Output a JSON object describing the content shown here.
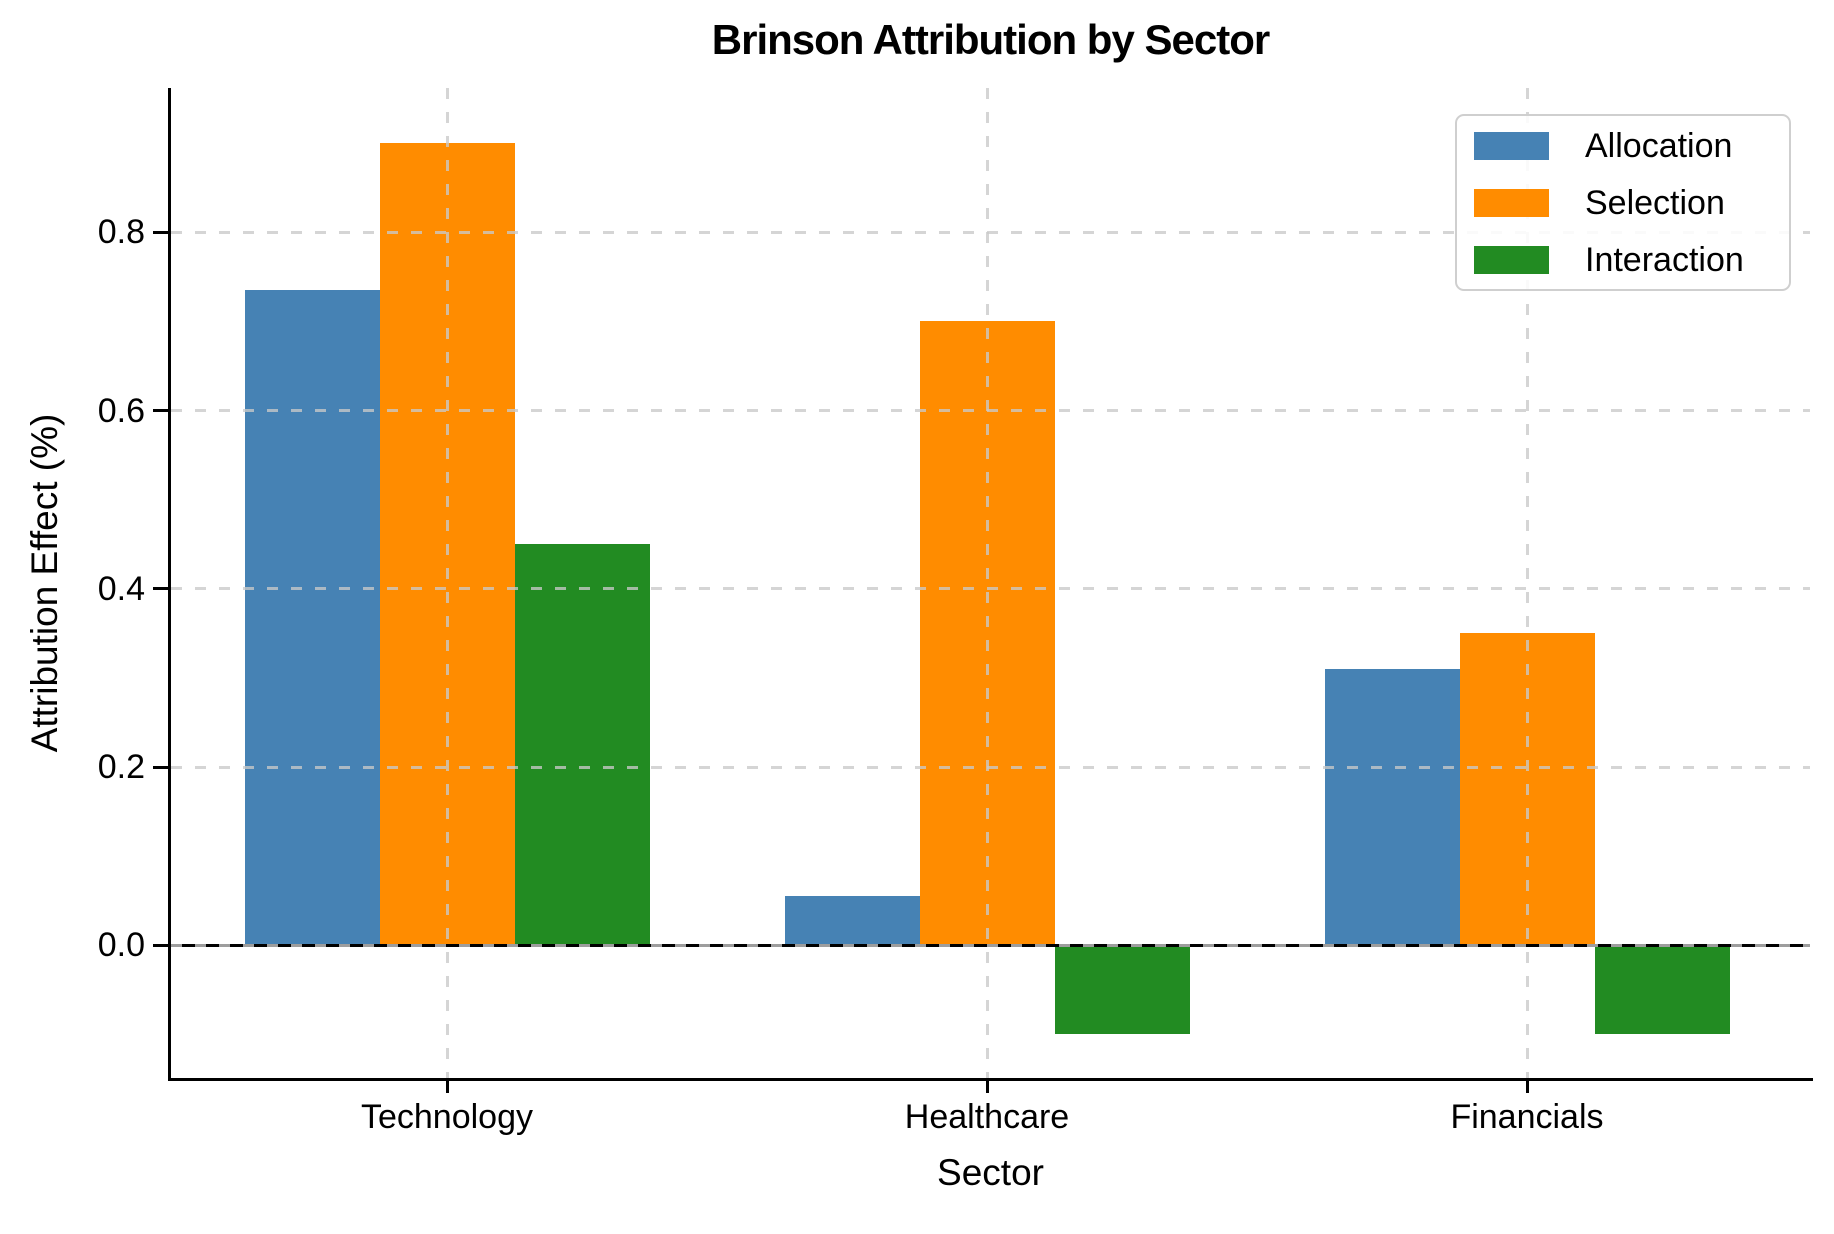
{
  "title": "Brinson Attribution by Sector",
  "chart_data": {
    "type": "bar",
    "title": "Brinson Attribution by Sector",
    "xlabel": "Sector",
    "ylabel": "Attribution Effect (%)",
    "categories": [
      "Technology",
      "Healthcare",
      "Financials"
    ],
    "series": [
      {
        "name": "Allocation",
        "color": "#4682B4",
        "values": [
          0.735,
          0.055,
          0.31
        ]
      },
      {
        "name": "Selection",
        "color": "#FF8C00",
        "values": [
          0.9,
          0.7,
          0.35
        ]
      },
      {
        "name": "Interaction",
        "color": "#228B22",
        "values": [
          0.45,
          -0.1,
          -0.1
        ]
      }
    ],
    "y_ticks": [
      0.0,
      0.2,
      0.4,
      0.6,
      0.8
    ],
    "y_tick_labels": [
      "0.0",
      "0.2",
      "0.4",
      "0.6",
      "0.8"
    ],
    "ylim": [
      -0.149,
      0.962
    ],
    "bar_width_units": 0.25,
    "grid": true,
    "grid_style": "dashed",
    "grid_over_bars": true,
    "zero_line": true,
    "legend_position": "upper right",
    "legend_entries": [
      "Allocation",
      "Selection",
      "Interaction"
    ],
    "colors": {
      "allocation": "#4682B4",
      "selection": "#FF8C00",
      "interaction": "#228B22",
      "grid": "#c9c9c9",
      "axis": "#000000",
      "background": "#ffffff"
    }
  }
}
